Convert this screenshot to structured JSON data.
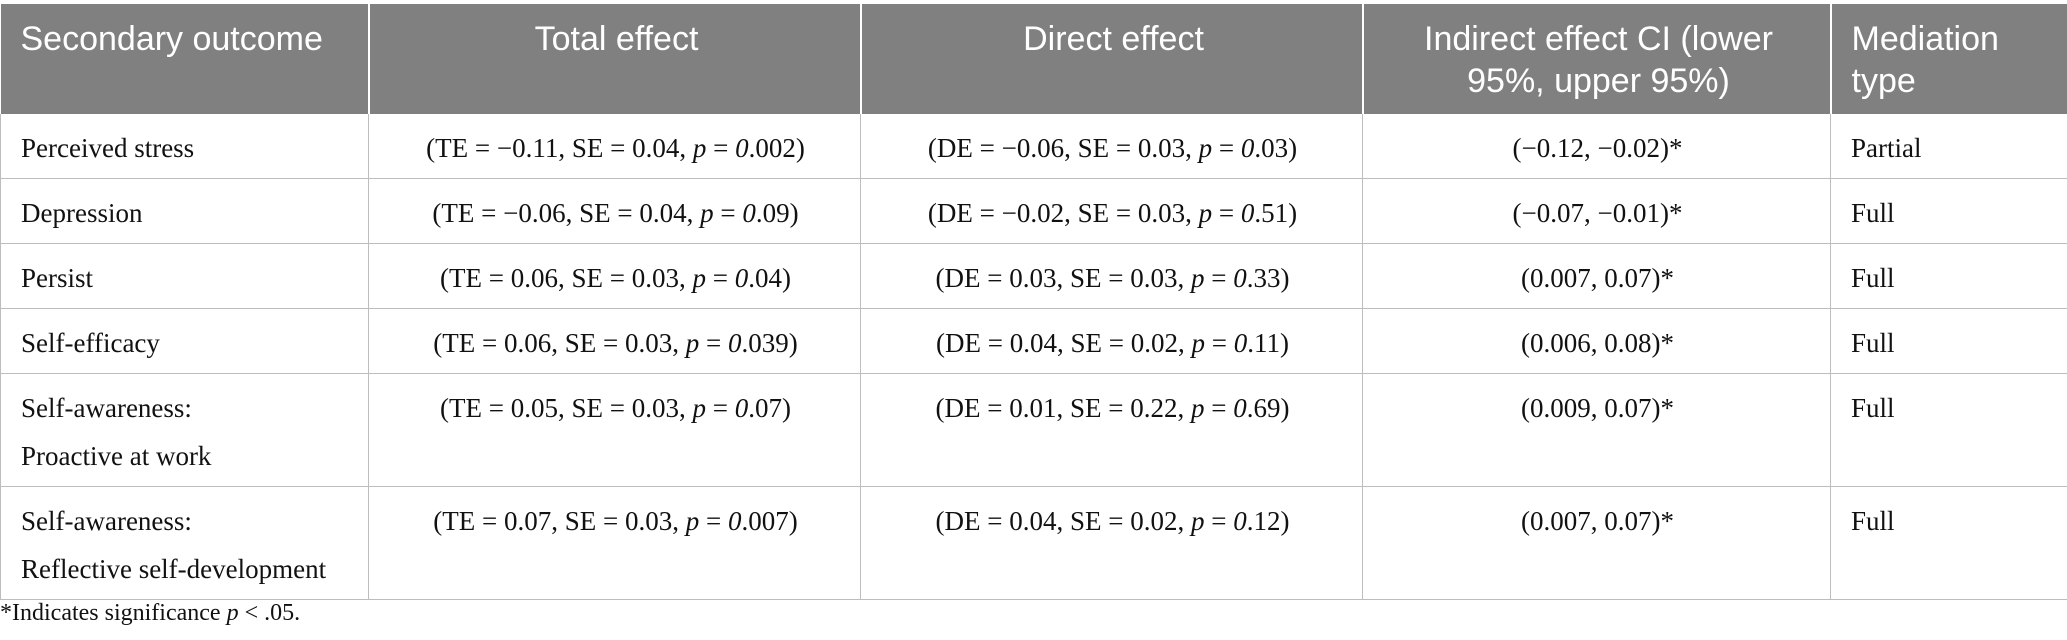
{
  "headers": [
    "Secondary outcome",
    "Total effect",
    "Direct effect",
    "Indirect effect CI (lower 95%, upper 95%)",
    "Mediation type"
  ],
  "rows": [
    {
      "outcome": [
        "Perceived stress"
      ],
      "te": {
        "label": "TE",
        "est": "−0.11",
        "se": "0.04",
        "p": "0.002"
      },
      "de": {
        "label": "DE",
        "est": "−0.06",
        "se": "0.03",
        "p": "0.03"
      },
      "ci": "(−0.12, −0.02)*",
      "type": "Partial"
    },
    {
      "outcome": [
        "Depression"
      ],
      "te": {
        "label": "TE",
        "est": "−0.06",
        "se": "0.04",
        "p": "0.09"
      },
      "de": {
        "label": "DE",
        "est": "−0.02",
        "se": "0.03",
        "p": "0.51"
      },
      "ci": "(−0.07, −0.01)*",
      "type": "Full"
    },
    {
      "outcome": [
        "Persist"
      ],
      "te": {
        "label": "TE",
        "est": "0.06",
        "se": "0.03",
        "p": "0.04"
      },
      "de": {
        "label": "DE",
        "est": "0.03",
        "se": "0.03",
        "p": "0.33"
      },
      "ci": "(0.007, 0.07)*",
      "type": "Full"
    },
    {
      "outcome": [
        "Self-efficacy"
      ],
      "te": {
        "label": "TE",
        "est": "0.06",
        "se": "0.03",
        "p": "0.039"
      },
      "de": {
        "label": "DE",
        "est": "0.04",
        "se": "0.02",
        "p": "0.11"
      },
      "ci": "(0.006, 0.08)*",
      "type": "Full"
    },
    {
      "outcome": [
        "Self-awareness:",
        "Proactive at work"
      ],
      "te": {
        "label": "TE",
        "est": "0.05",
        "se": "0.03",
        "p": "0.07"
      },
      "de": {
        "label": "DE",
        "est": "0.01",
        "se": "0.22",
        "p": "0.69"
      },
      "ci": "(0.009, 0.07)*",
      "type": "Full"
    },
    {
      "outcome": [
        "Self-awareness:",
        "Reflective self-development"
      ],
      "te": {
        "label": "TE",
        "est": "0.07",
        "se": "0.03",
        "p": "0.007"
      },
      "de": {
        "label": "DE",
        "est": "0.04",
        "se": "0.02",
        "p": "0.12"
      },
      "ci": "(0.007, 0.07)*",
      "type": "Full"
    }
  ],
  "footnote": {
    "prefix": "*Indicates significance ",
    "p": "p",
    "suffix": " < .05."
  }
}
